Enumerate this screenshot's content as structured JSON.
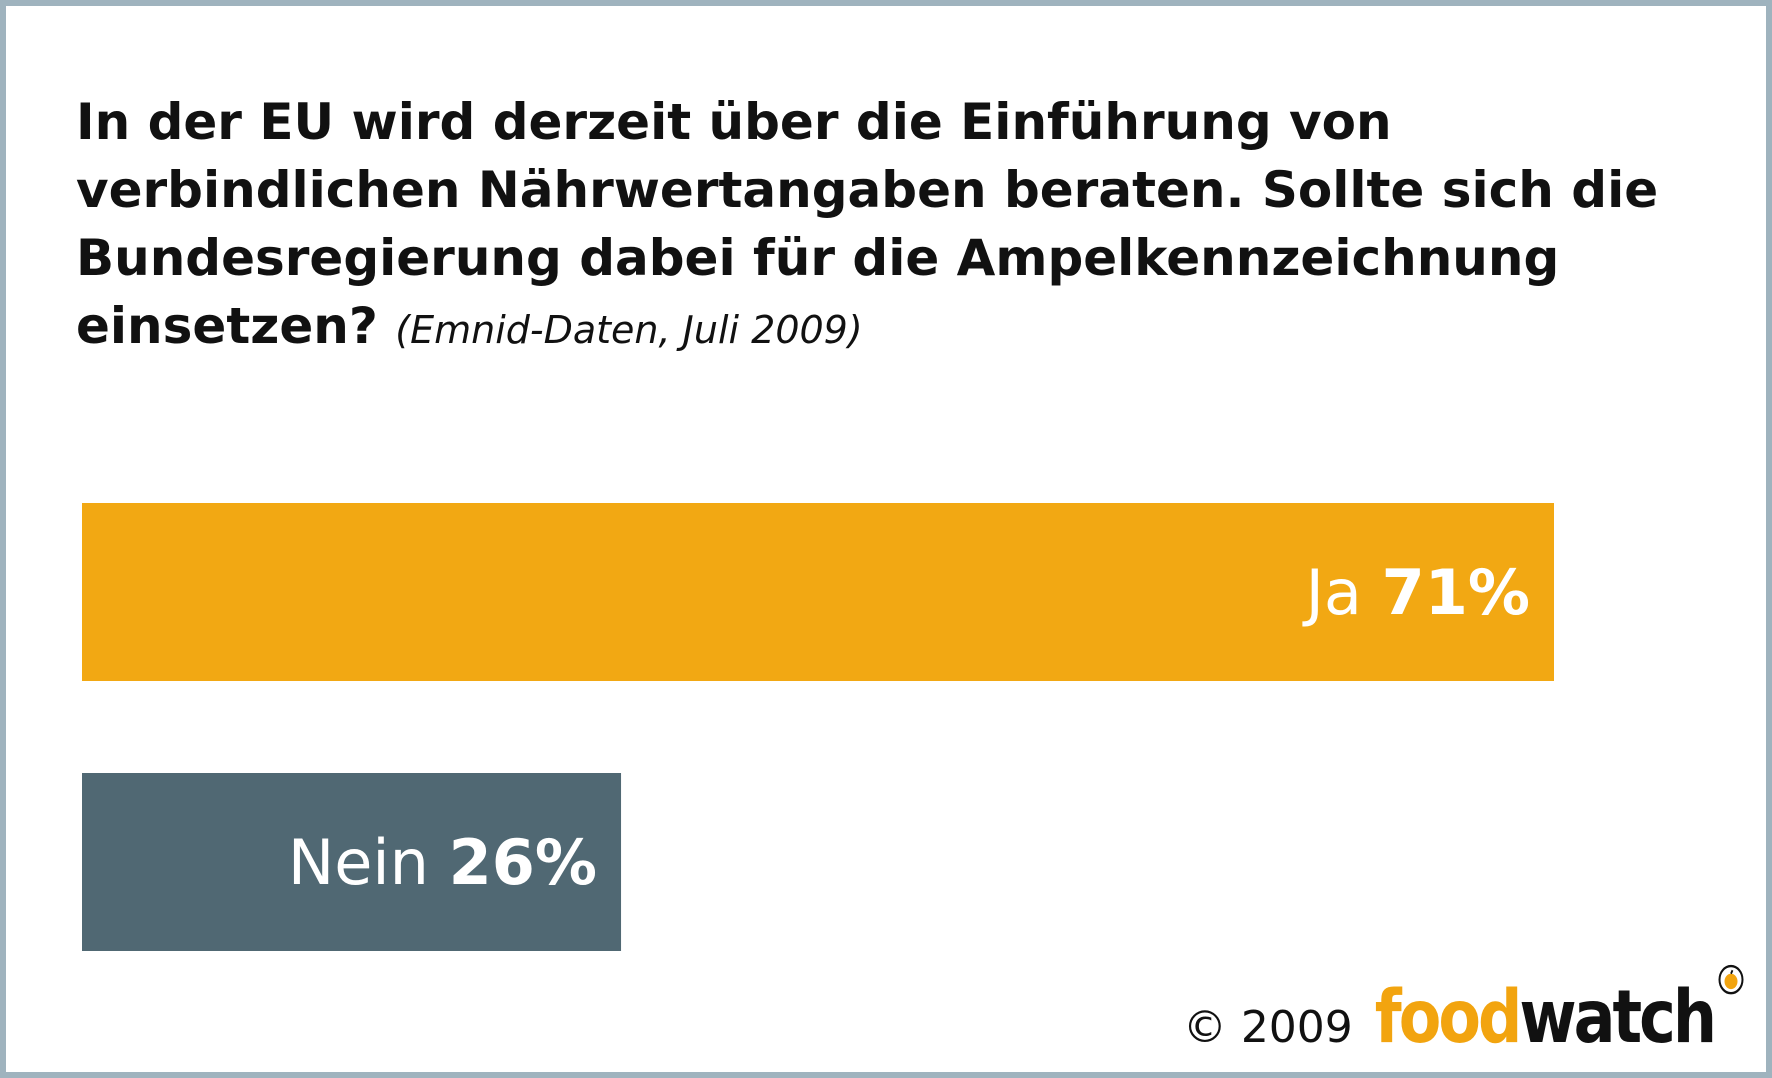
{
  "chart_data": {
    "type": "bar",
    "orientation": "horizontal",
    "title": "In der EU wird derzeit über die Einführung von verbindlichen Nährwertangaben beraten. Sollte sich die Bundesregierung dabei für die Ampelkennzeichnung einsetzen?",
    "subtitle": "(Emnid-Daten, Juli 2009)",
    "categories": [
      "Ja",
      "Nein"
    ],
    "values": [
      71,
      26
    ],
    "value_labels": [
      "71%",
      "26%"
    ],
    "colors": [
      "#f2a813",
      "#506873"
    ],
    "xlim": [
      0,
      100
    ],
    "grid": false
  },
  "footer": {
    "copyright": "© 2009",
    "logo_food": "food",
    "logo_watch": "watch"
  },
  "colors": {
    "frame": "#9fb3be",
    "ja": "#f2a813",
    "nein": "#506873",
    "brand_orange": "#f2a40f"
  }
}
